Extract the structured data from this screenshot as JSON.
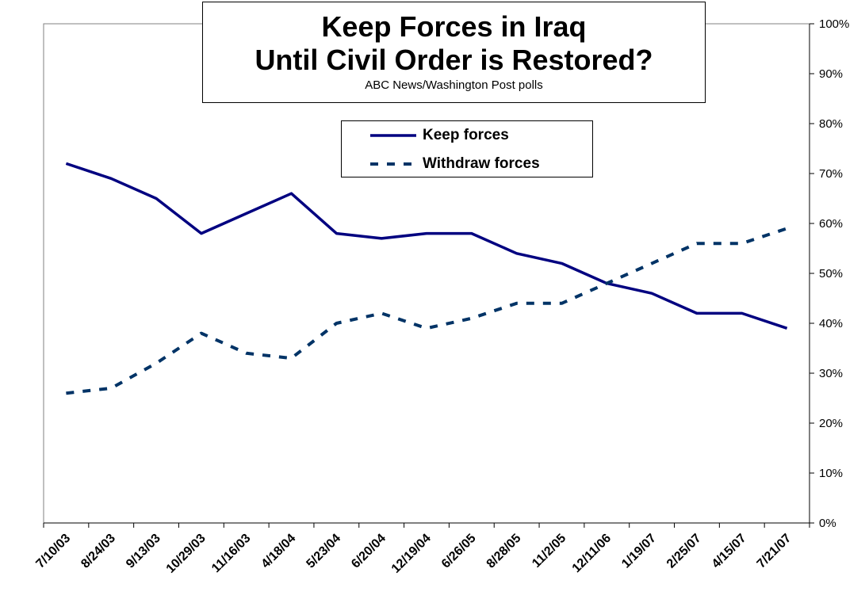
{
  "chart_data": {
    "type": "line",
    "title_line1": "Keep Forces in Iraq",
    "title_line2": "Until Civil Order is Restored?",
    "subtitle": "ABC News/Washington Post polls",
    "categories": [
      "7/10/03",
      "8/24/03",
      "9/13/03",
      "10/29/03",
      "11/16/03",
      "4/18/04",
      "5/23/04",
      "6/20/04",
      "12/19/04",
      "6/26/05",
      "8/28/05",
      "11/2/05",
      "12/11/06",
      "1/19/07",
      "2/25/07",
      "4/15/07",
      "7/21/07"
    ],
    "series": [
      {
        "name": "Keep forces",
        "style": "solid",
        "color": "#000080",
        "values": [
          72,
          69,
          65,
          58,
          62,
          66,
          58,
          57,
          58,
          58,
          54,
          52,
          48,
          46,
          42,
          42,
          39
        ]
      },
      {
        "name": "Withdraw forces",
        "style": "dashed",
        "color": "#003366",
        "values": [
          26,
          27,
          32,
          38,
          34,
          33,
          40,
          42,
          39,
          41,
          44,
          44,
          48,
          52,
          56,
          56,
          59
        ]
      }
    ],
    "y_axis": {
      "position": "right",
      "min": 0,
      "max": 100,
      "step": 10,
      "unit": "%"
    },
    "legend_placement": "top-center",
    "grid": false
  }
}
